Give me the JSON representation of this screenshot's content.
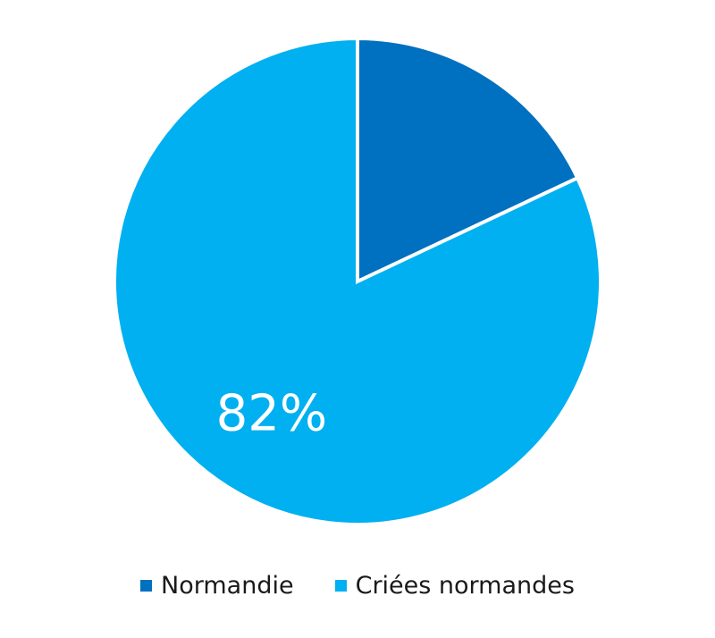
{
  "chart_data": {
    "type": "pie",
    "title": "",
    "slices": [
      {
        "name": "Normandie",
        "value": 18,
        "label": "",
        "color": "#0070c0"
      },
      {
        "name": "Criées normandes",
        "value": 82,
        "label": "82%",
        "color": "#00b0f0"
      }
    ],
    "legend": "bottom",
    "start_angle_deg": 0,
    "direction": "clockwise"
  },
  "legend": {
    "items": [
      {
        "label": "Normandie",
        "color": "#0070c0"
      },
      {
        "label": "Criées normandes",
        "color": "#00b0f0"
      }
    ]
  }
}
